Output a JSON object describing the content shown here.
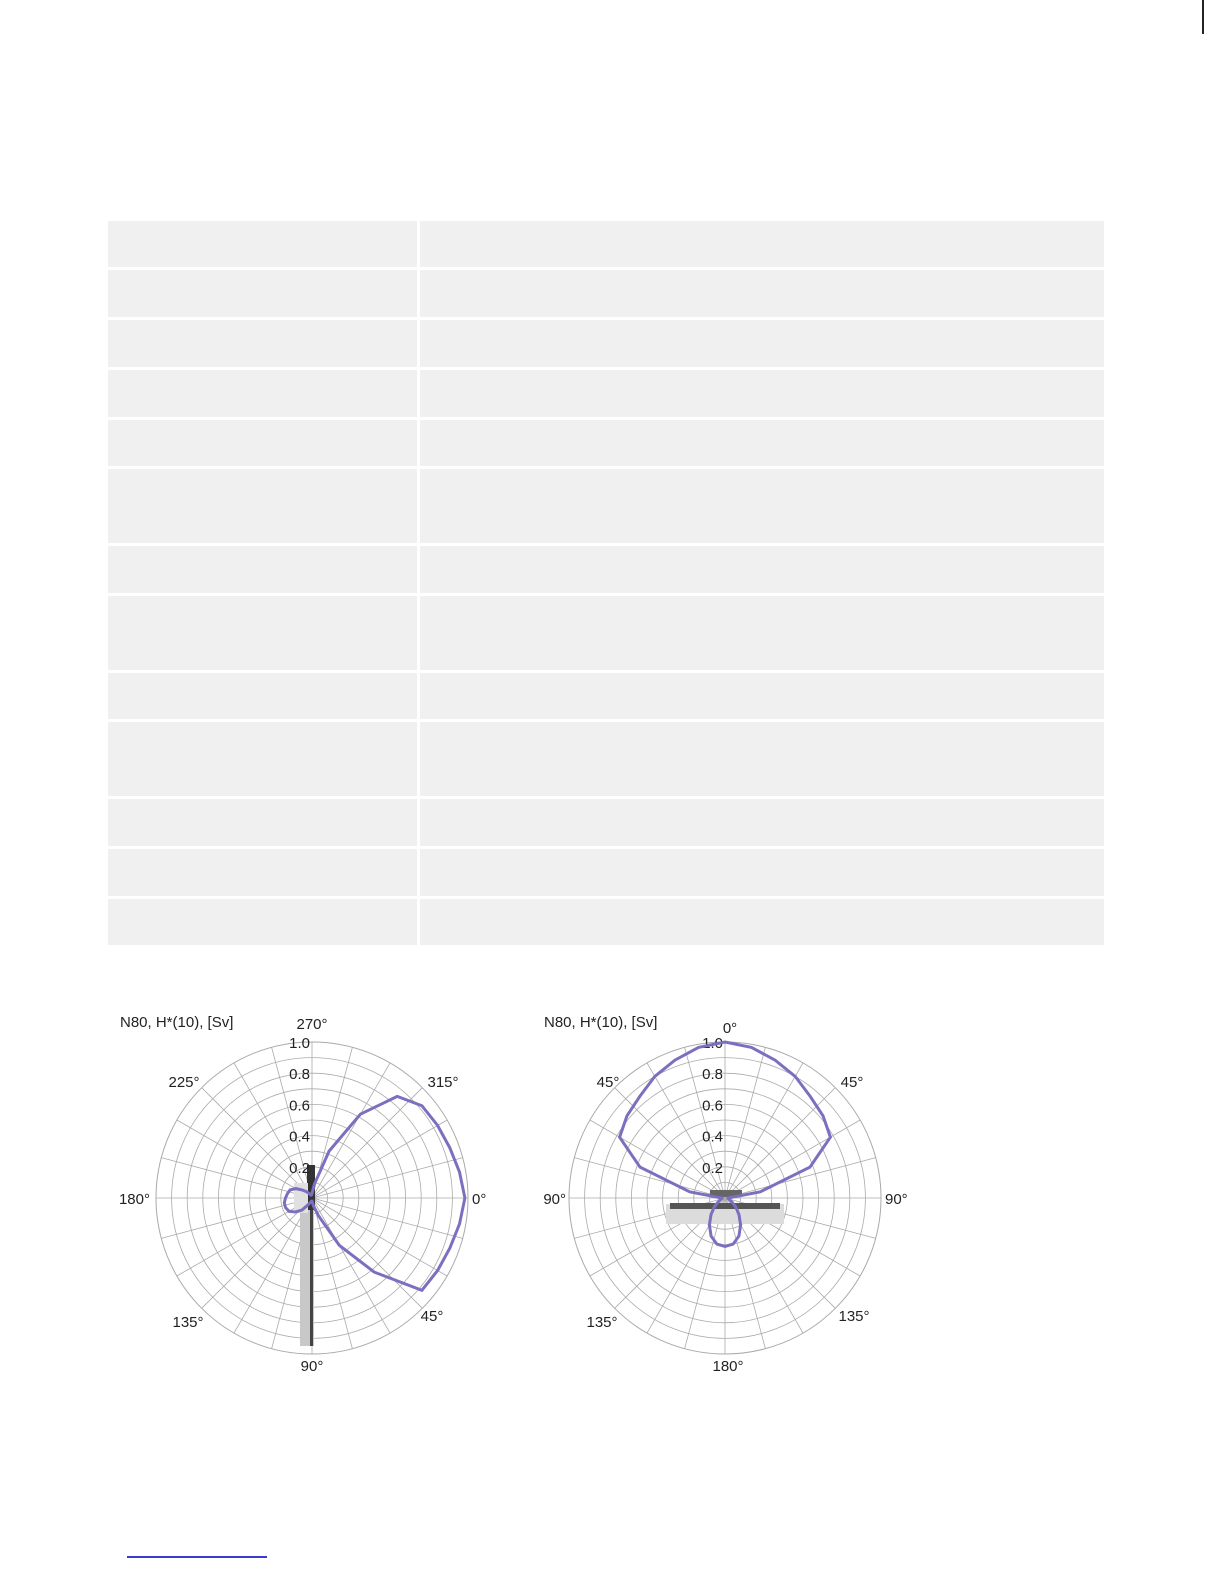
{
  "colors": {
    "curve": "#7b6fbf",
    "grid": "#aaaaaa",
    "text": "#222222",
    "table_cell": "#f0f0f0",
    "link": "#3a3ad0"
  },
  "table": {
    "rows": [
      {
        "label": "",
        "value": ""
      },
      {
        "label": "",
        "value": ""
      },
      {
        "label": "",
        "value": ""
      },
      {
        "label": "",
        "value": ""
      },
      {
        "label": "",
        "value": ""
      },
      {
        "label": "",
        "value": ""
      },
      {
        "label": "",
        "value": ""
      },
      {
        "label": "",
        "value": ""
      },
      {
        "label": "",
        "value": ""
      },
      {
        "label": "",
        "value": ""
      },
      {
        "label": "",
        "value": ""
      },
      {
        "label": "",
        "value": ""
      },
      {
        "label": "",
        "value": ""
      }
    ]
  },
  "chart_data": [
    {
      "type": "polar",
      "title": "N80, H*(10), [Sv]",
      "r_ticks": [
        "0.2",
        "0.4",
        "0.6",
        "0.8",
        "1.0"
      ],
      "rlim": [
        0,
        1.0
      ],
      "grid": true,
      "angle_labels": [
        "0°",
        "45°",
        "90°",
        "135°",
        "180°",
        "225°",
        "270°",
        "315°"
      ],
      "series": [
        {
          "angles_deg": [
            0,
            10,
            20,
            30,
            40,
            50,
            60,
            70,
            80,
            90,
            100,
            110,
            120,
            130,
            140,
            150,
            160,
            170,
            180,
            190,
            200,
            210,
            220,
            230,
            240,
            250,
            260,
            270,
            280,
            290,
            300,
            310,
            320,
            330,
            340,
            350
          ],
          "values": [
            0.98,
            0.96,
            0.94,
            0.93,
            0.92,
            0.62,
            0.35,
            0.12,
            0.05,
            0.02,
            0.02,
            0.03,
            0.05,
            0.1,
            0.14,
            0.17,
            0.18,
            0.18,
            0.17,
            0.16,
            0.15,
            0.12,
            0.08,
            0.05,
            0.03,
            0.02,
            0.02,
            0.03,
            0.09,
            0.32,
            0.62,
            0.85,
            0.92,
            0.93,
            0.94,
            0.96
          ]
        }
      ]
    },
    {
      "type": "polar",
      "title": "N80, H*(10), [Sv]",
      "r_ticks": [
        "0.2",
        "0.4",
        "0.6",
        "0.8",
        "1.0"
      ],
      "rlim": [
        0,
        1.0
      ],
      "grid": true,
      "angle_labels_right": [
        "0°",
        "45°",
        "90°",
        "135°",
        "180°"
      ],
      "angle_labels_left": [
        "45°",
        "90°",
        "135°"
      ],
      "series": [
        {
          "angles_deg": [
            0,
            10,
            20,
            30,
            40,
            50,
            60,
            70,
            80,
            90,
            100,
            110,
            120,
            130,
            140,
            150,
            160,
            170,
            180,
            190,
            200,
            210,
            220,
            230,
            240,
            250,
            260,
            270,
            280,
            290,
            300,
            310,
            320,
            330,
            340,
            350
          ],
          "values": [
            1.0,
            0.98,
            0.94,
            0.9,
            0.85,
            0.82,
            0.78,
            0.58,
            0.23,
            0.02,
            0.02,
            0.03,
            0.05,
            0.09,
            0.14,
            0.2,
            0.26,
            0.3,
            0.31,
            0.3,
            0.26,
            0.2,
            0.14,
            0.09,
            0.05,
            0.03,
            0.02,
            0.02,
            0.23,
            0.58,
            0.78,
            0.82,
            0.85,
            0.9,
            0.94,
            0.98
          ]
        }
      ]
    }
  ]
}
